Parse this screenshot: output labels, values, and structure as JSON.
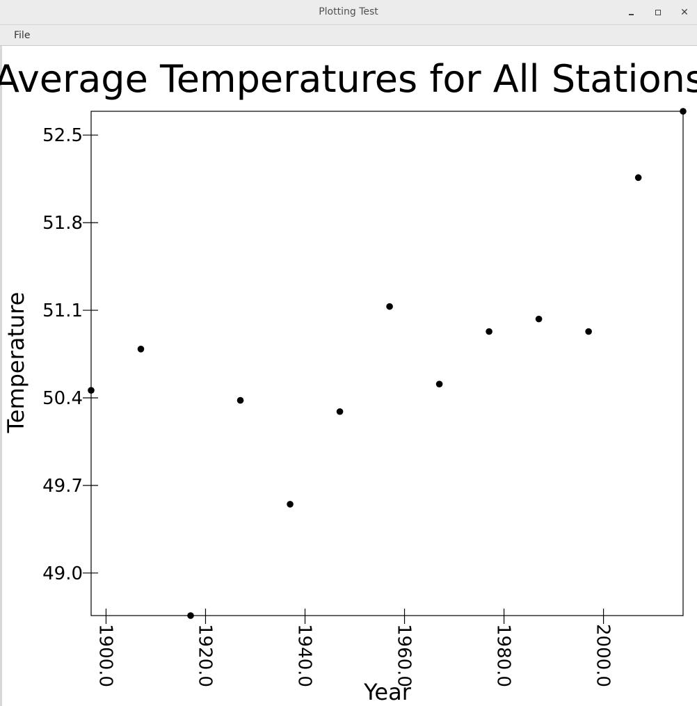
{
  "window": {
    "title": "Plotting Test",
    "minimize_icon": "minimize-icon",
    "maximize_icon": "maximize-icon",
    "close_icon": "close-icon",
    "close_glyph": "✕"
  },
  "menu": {
    "file_label": "File"
  },
  "chart_data": {
    "type": "scatter",
    "title": "Average Temperatures for All Stations",
    "xlabel": "Year",
    "ylabel": "Temperature",
    "xlim": [
      1897,
      2016
    ],
    "ylim": [
      48.66,
      52.69
    ],
    "grid": false,
    "x_ticks": [
      1900,
      1920,
      1940,
      1960,
      1980,
      2000
    ],
    "x_tick_labels": [
      "1900.0",
      "1920.0",
      "1940.0",
      "1960.0",
      "1980.0",
      "2000.0"
    ],
    "y_ticks": [
      49.0,
      49.7,
      50.4,
      51.1,
      51.8,
      52.5
    ],
    "y_tick_labels": [
      "49.0",
      "49.7",
      "50.4",
      "51.1",
      "51.8",
      "52.5"
    ],
    "series": [
      {
        "color": "#000000",
        "points": [
          {
            "x": 1897,
            "y": 50.46
          },
          {
            "x": 1907,
            "y": 50.79
          },
          {
            "x": 1917,
            "y": 48.66
          },
          {
            "x": 1927,
            "y": 50.38
          },
          {
            "x": 1937,
            "y": 49.55
          },
          {
            "x": 1947,
            "y": 50.29
          },
          {
            "x": 1957,
            "y": 51.13
          },
          {
            "x": 1967,
            "y": 50.51
          },
          {
            "x": 1977,
            "y": 50.93
          },
          {
            "x": 1987,
            "y": 51.03
          },
          {
            "x": 1997,
            "y": 50.93
          },
          {
            "x": 2007,
            "y": 52.16
          },
          {
            "x": 2016,
            "y": 52.69
          }
        ]
      }
    ]
  }
}
